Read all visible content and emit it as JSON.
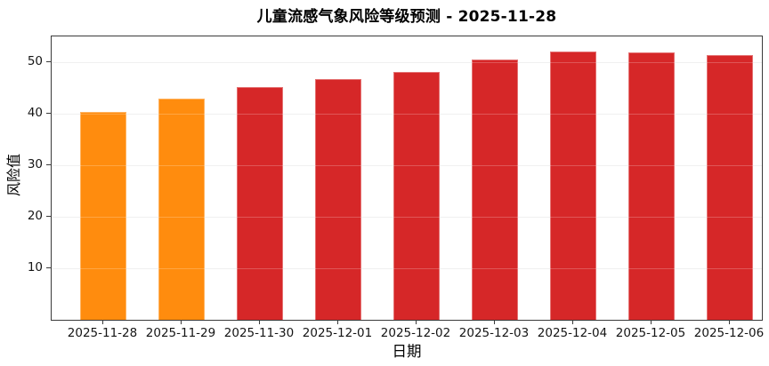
{
  "chart_data": {
    "type": "bar",
    "title": "儿童流感气象风险等级预测 - 2025-11-28",
    "xlabel": "日期",
    "ylabel": "风险值",
    "categories": [
      "2025-11-28",
      "2025-11-29",
      "2025-11-30",
      "2025-12-01",
      "2025-12-02",
      "2025-12-03",
      "2025-12-04",
      "2025-12-05",
      "2025-12-06"
    ],
    "values": [
      40.4,
      43.0,
      45.2,
      46.8,
      48.1,
      50.6,
      52.2,
      51.9,
      51.4
    ],
    "bar_colors": [
      "#ff8c0e",
      "#ff8c0e",
      "#d62728",
      "#d62728",
      "#d62728",
      "#d62728",
      "#d62728",
      "#d62728",
      "#d62728"
    ],
    "yticks": [
      10,
      20,
      30,
      40,
      50
    ],
    "ylim": [
      0,
      55
    ],
    "grid": "horizontal",
    "legend": "none",
    "colors": {
      "warning_orange": "#ff8c0e",
      "risk_red": "#d62728",
      "gridline": "#ececec",
      "axis": "#3a3a3a"
    }
  }
}
